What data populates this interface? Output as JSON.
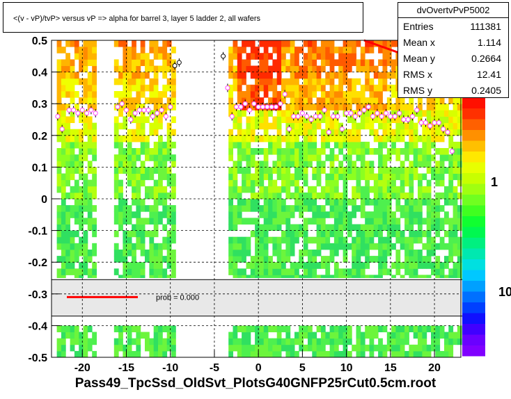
{
  "title": "<(v - vP)/tvP> versus   vP => alpha for barrel 3, layer 5 ladder 2, all wafers",
  "stats": {
    "name": "dvOvertvPvP5002",
    "rows": [
      {
        "key": "Entries",
        "value": "111381"
      },
      {
        "key": "Mean x",
        "value": "1.114"
      },
      {
        "key": "Mean y",
        "value": "0.2664"
      },
      {
        "key": "RMS x",
        "value": "12.41"
      },
      {
        "key": "RMS y",
        "value": "0.2405"
      }
    ]
  },
  "fit_legend": {
    "label": "prob = 0.000",
    "line_color": "#ff0000"
  },
  "footer": "Pass49_TpcSsd_OldSvt_PlotsG40GNFP25rCut0.5cm.root",
  "colorbar_labels": [
    "1",
    "10"
  ],
  "chart_data": {
    "type": "heatmap",
    "title": "<(v - vP)/tvP> versus   vP => alpha for barrel 3, layer 5 ladder 2, all wafers",
    "xlabel": "",
    "ylabel": "",
    "xlim": [
      -23.5,
      23
    ],
    "ylim": [
      -0.5,
      0.5
    ],
    "x_ticks": [
      -20,
      -15,
      -10,
      -5,
      0,
      5,
      10,
      15,
      20
    ],
    "y_ticks": [
      -0.5,
      -0.4,
      -0.3,
      -0.2,
      -0.1,
      0,
      0.1,
      0.2,
      0.3,
      0.4,
      0.5
    ],
    "y_tick_labels": [
      "-0.5",
      "-0.4",
      "-0.3",
      "-0.2",
      "-0.1",
      "0",
      "0.1",
      "0.2",
      "0.3",
      "0.4",
      "0.5"
    ],
    "grid": true,
    "log_z": true,
    "colors": {
      "low": "#7b00ff",
      "mid": "#00ff55",
      "high": "#ff2200"
    },
    "empty_x_ranges": [
      [
        -18.5,
        -16.5
      ],
      [
        -9.5,
        -3.5
      ]
    ],
    "band_y_range": [
      -0.4,
      -0.25
    ],
    "profile_points": [
      {
        "x": -22.8,
        "y": 0.26
      },
      {
        "x": -22.3,
        "y": 0.22
      },
      {
        "x": -21.5,
        "y": 0.28
      },
      {
        "x": -21.0,
        "y": 0.28
      },
      {
        "x": -20.5,
        "y": 0.27
      },
      {
        "x": -20.0,
        "y": 0.28
      },
      {
        "x": -19.5,
        "y": 0.27
      },
      {
        "x": -19.0,
        "y": 0.28
      },
      {
        "x": -18.5,
        "y": 0.27
      },
      {
        "x": -16.0,
        "y": 0.29
      },
      {
        "x": -15.5,
        "y": 0.3
      },
      {
        "x": -15.0,
        "y": 0.28
      },
      {
        "x": -14.5,
        "y": 0.25
      },
      {
        "x": -14.0,
        "y": 0.27
      },
      {
        "x": -13.5,
        "y": 0.28
      },
      {
        "x": -13.0,
        "y": 0.28
      },
      {
        "x": -12.5,
        "y": 0.28
      },
      {
        "x": -12.0,
        "y": 0.26
      },
      {
        "x": -11.5,
        "y": 0.27
      },
      {
        "x": -11.0,
        "y": 0.28
      },
      {
        "x": -10.5,
        "y": 0.26
      },
      {
        "x": -10.0,
        "y": 0.29
      },
      {
        "x": -9.5,
        "y": 0.42
      },
      {
        "x": -9.0,
        "y": 0.43
      },
      {
        "x": -4.0,
        "y": 0.45
      },
      {
        "x": -3.5,
        "y": 0.35
      },
      {
        "x": -3.0,
        "y": 0.26
      },
      {
        "x": -2.5,
        "y": 0.29
      },
      {
        "x": -2.0,
        "y": 0.29
      },
      {
        "x": -1.5,
        "y": 0.3
      },
      {
        "x": -1.0,
        "y": 0.28
      },
      {
        "x": -0.5,
        "y": 0.3
      },
      {
        "x": 0.0,
        "y": 0.29
      },
      {
        "x": 0.5,
        "y": 0.29
      },
      {
        "x": 1.0,
        "y": 0.29
      },
      {
        "x": 1.5,
        "y": 0.29
      },
      {
        "x": 2.0,
        "y": 0.29
      },
      {
        "x": 2.5,
        "y": 0.3
      },
      {
        "x": 3.0,
        "y": 0.33
      },
      {
        "x": 3.5,
        "y": 0.22
      },
      {
        "x": 4.0,
        "y": 0.26
      },
      {
        "x": 4.5,
        "y": 0.26
      },
      {
        "x": 5.0,
        "y": 0.27
      },
      {
        "x": 5.5,
        "y": 0.26
      },
      {
        "x": 6.0,
        "y": 0.25
      },
      {
        "x": 6.5,
        "y": 0.26
      },
      {
        "x": 7.0,
        "y": 0.26
      },
      {
        "x": 7.5,
        "y": 0.28
      },
      {
        "x": 8.0,
        "y": 0.21
      },
      {
        "x": 8.5,
        "y": 0.26
      },
      {
        "x": 9.0,
        "y": 0.26
      },
      {
        "x": 9.5,
        "y": 0.22
      },
      {
        "x": 10.0,
        "y": 0.27
      },
      {
        "x": 10.5,
        "y": 0.27
      },
      {
        "x": 11.0,
        "y": 0.26
      },
      {
        "x": 11.5,
        "y": 0.27
      },
      {
        "x": 12.0,
        "y": 0.28
      },
      {
        "x": 12.5,
        "y": 0.29
      },
      {
        "x": 13.0,
        "y": 0.26
      },
      {
        "x": 13.5,
        "y": 0.27
      },
      {
        "x": 14.0,
        "y": 0.26
      },
      {
        "x": 14.5,
        "y": 0.27
      },
      {
        "x": 15.0,
        "y": 0.26
      },
      {
        "x": 15.5,
        "y": 0.26
      },
      {
        "x": 16.0,
        "y": 0.27
      },
      {
        "x": 16.5,
        "y": 0.25
      },
      {
        "x": 17.0,
        "y": 0.25
      },
      {
        "x": 17.5,
        "y": 0.26
      },
      {
        "x": 18.0,
        "y": 0.28
      },
      {
        "x": 18.5,
        "y": 0.24
      },
      {
        "x": 19.0,
        "y": 0.24
      },
      {
        "x": 19.5,
        "y": 0.23
      },
      {
        "x": 20.0,
        "y": 0.24
      },
      {
        "x": 20.5,
        "y": 0.24
      },
      {
        "x": 21.0,
        "y": 0.22
      },
      {
        "x": 21.5,
        "y": 0.21
      },
      {
        "x": 22.0,
        "y": 0.15
      }
    ],
    "fit_line": [
      {
        "x": 12.0,
        "y": 0.5
      },
      {
        "x": 23.0,
        "y": 0.45
      }
    ]
  }
}
